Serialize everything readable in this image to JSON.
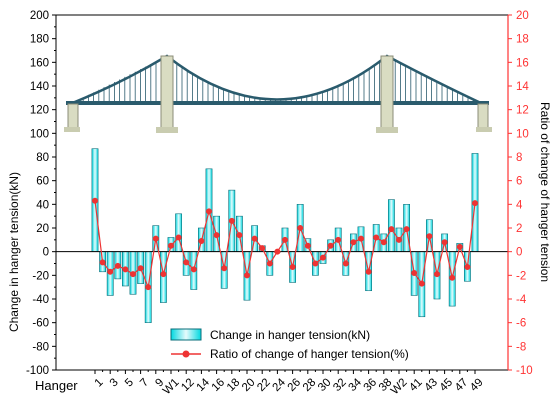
{
  "chart_data": {
    "type": "bar",
    "left_axis": {
      "label": "Change in hanger tension(kN)",
      "ylim": [
        -100,
        200
      ],
      "ticks": [
        -100,
        -80,
        -60,
        -40,
        -20,
        0,
        20,
        40,
        60,
        80,
        100,
        120,
        140,
        160,
        180,
        200
      ],
      "color": "#000000"
    },
    "right_axis": {
      "label": "Ratio of change of hanger tension",
      "ylim": [
        -10,
        20
      ],
      "ticks": [
        -10,
        -8,
        -6,
        -4,
        -2,
        0,
        2,
        4,
        6,
        8,
        10,
        12,
        14,
        16,
        18,
        20
      ],
      "color": "#ff3333"
    },
    "x_axis": {
      "title": "Hanger",
      "tick_labels": [
        "1",
        "3",
        "5",
        "7",
        "9",
        "W1",
        "12",
        "14",
        "16",
        "18",
        "20",
        "22",
        "24",
        "26",
        "28",
        "30",
        "32",
        "34",
        "36",
        "38",
        "W2",
        "41",
        "43",
        "45",
        "47",
        "49"
      ]
    },
    "legend": {
      "position": "bottom-center",
      "bar_label": "Change in hanger tension(kN)",
      "line_label": "Ratio of change of hanger tension(%)"
    },
    "series": [
      {
        "name": "Change in hanger tension(kN)",
        "kind": "bar",
        "color": "#00d8e0",
        "values": [
          87,
          -17,
          -37,
          -23,
          -29,
          -36,
          -27,
          -60,
          22,
          -43,
          12,
          32,
          -20,
          -32,
          20,
          70,
          30,
          -31,
          52,
          30,
          -41,
          22,
          5,
          -20,
          0,
          20,
          -26,
          40,
          11,
          -20,
          -10,
          10,
          20,
          -20,
          15,
          21,
          -33,
          23,
          15,
          44,
          20,
          40,
          -37,
          -55,
          27,
          -40,
          15,
          -46,
          7,
          -25,
          83
        ]
      },
      {
        "name": "Ratio of change of hanger tension(%)",
        "kind": "line",
        "color": "#ee3333",
        "values": [
          4.3,
          -0.9,
          -1.7,
          -1.2,
          -1.5,
          -1.9,
          -1.4,
          -3.0,
          1.1,
          -1.9,
          0.5,
          1.2,
          -0.9,
          -1.5,
          0.9,
          3.4,
          1.4,
          -1.4,
          2.6,
          1.4,
          -2.0,
          1.1,
          0.3,
          -1.0,
          0.0,
          1.0,
          -1.3,
          2.0,
          0.5,
          -1.0,
          -0.5,
          0.5,
          1.0,
          -1.0,
          0.8,
          1.1,
          -1.7,
          1.2,
          0.8,
          1.9,
          1.0,
          1.9,
          -1.8,
          -2.7,
          1.3,
          -1.9,
          0.8,
          -2.2,
          0.4,
          -1.3,
          4.1
        ]
      }
    ],
    "grid": false
  }
}
